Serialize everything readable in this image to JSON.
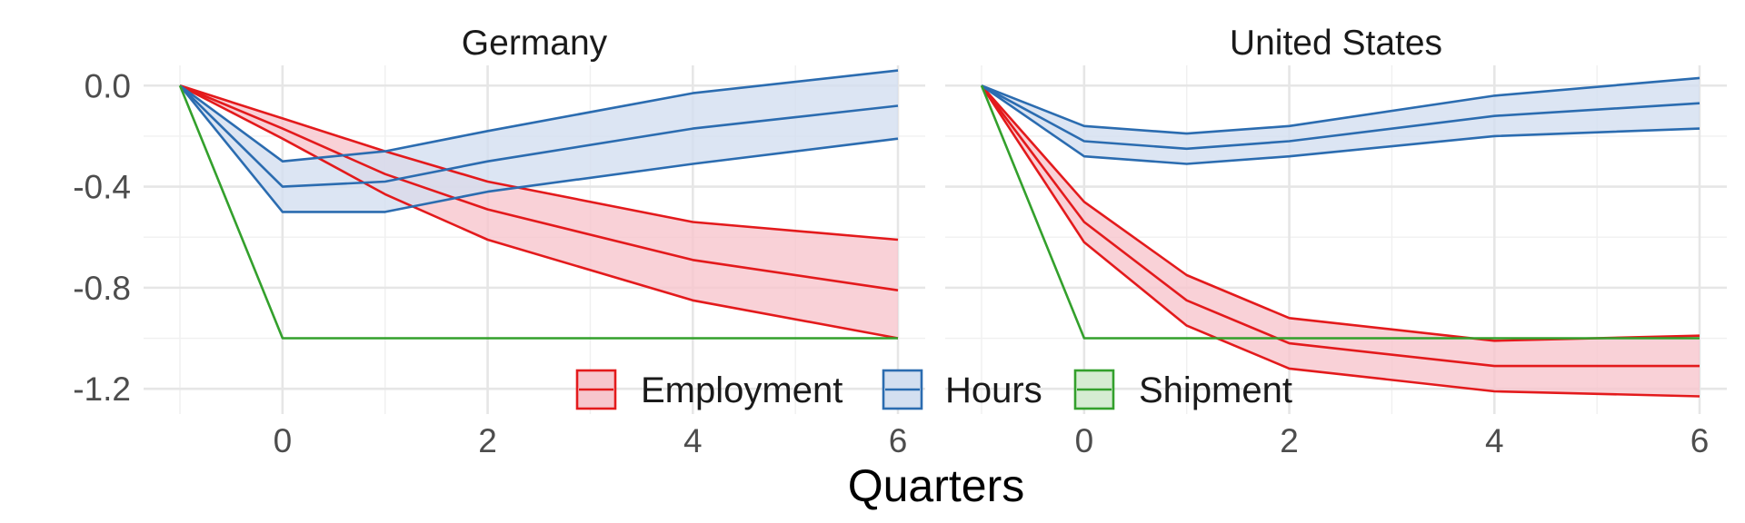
{
  "chart_data": {
    "type": "line",
    "xlabel": "Quarters",
    "ylabel": "",
    "xlim": [
      -1,
      6
    ],
    "ylim": [
      -1.3,
      0.08
    ],
    "x_ticks": [
      0,
      2,
      4,
      6
    ],
    "y_ticks": [
      0.0,
      -0.4,
      -0.8,
      -1.2
    ],
    "y_tick_labels": [
      "0.0",
      "-0.4",
      "-0.8",
      "-1.2"
    ],
    "grid": true,
    "legend_position": "bottom-center",
    "colors": {
      "Employment": "#e31a1c",
      "Hours": "#2b6cb0",
      "Shipment": "#33a02c"
    },
    "legend": [
      "Employment",
      "Hours",
      "Shipment"
    ],
    "panels": [
      {
        "title": "Germany",
        "series": [
          {
            "name": "Employment",
            "x": [
              -1,
              0,
              1,
              2,
              4,
              6
            ],
            "upper": [
              0,
              -0.13,
              -0.26,
              -0.38,
              -0.54,
              -0.61
            ],
            "mid": [
              0,
              -0.17,
              -0.35,
              -0.49,
              -0.69,
              -0.81
            ],
            "lower": [
              0,
              -0.21,
              -0.43,
              -0.61,
              -0.85,
              -1.0
            ]
          },
          {
            "name": "Hours",
            "x": [
              -1,
              0,
              1,
              2,
              4,
              6
            ],
            "upper": [
              0,
              -0.3,
              -0.26,
              -0.18,
              -0.03,
              0.06
            ],
            "mid": [
              0,
              -0.4,
              -0.38,
              -0.3,
              -0.17,
              -0.08
            ],
            "lower": [
              0,
              -0.5,
              -0.5,
              -0.42,
              -0.31,
              -0.21
            ]
          },
          {
            "name": "Shipment",
            "x": [
              -1,
              0,
              1,
              2,
              4,
              6
            ],
            "mid": [
              0,
              -1.0,
              -1.0,
              -1.0,
              -1.0,
              -1.0
            ]
          }
        ]
      },
      {
        "title": "United States",
        "series": [
          {
            "name": "Employment",
            "x": [
              -1,
              0,
              1,
              2,
              4,
              6
            ],
            "upper": [
              0,
              -0.46,
              -0.75,
              -0.92,
              -1.01,
              -0.99
            ],
            "mid": [
              0,
              -0.54,
              -0.85,
              -1.02,
              -1.11,
              -1.11
            ],
            "lower": [
              0,
              -0.62,
              -0.95,
              -1.12,
              -1.21,
              -1.23
            ]
          },
          {
            "name": "Hours",
            "x": [
              -1,
              0,
              1,
              2,
              4,
              6
            ],
            "upper": [
              0,
              -0.16,
              -0.19,
              -0.16,
              -0.04,
              0.03
            ],
            "mid": [
              0,
              -0.22,
              -0.25,
              -0.22,
              -0.12,
              -0.07
            ],
            "lower": [
              0,
              -0.28,
              -0.31,
              -0.28,
              -0.2,
              -0.17
            ]
          },
          {
            "name": "Shipment",
            "x": [
              -1,
              0,
              1,
              2,
              4,
              6
            ],
            "mid": [
              0,
              -1.0,
              -1.0,
              -1.0,
              -1.0,
              -1.0
            ]
          }
        ]
      }
    ]
  }
}
